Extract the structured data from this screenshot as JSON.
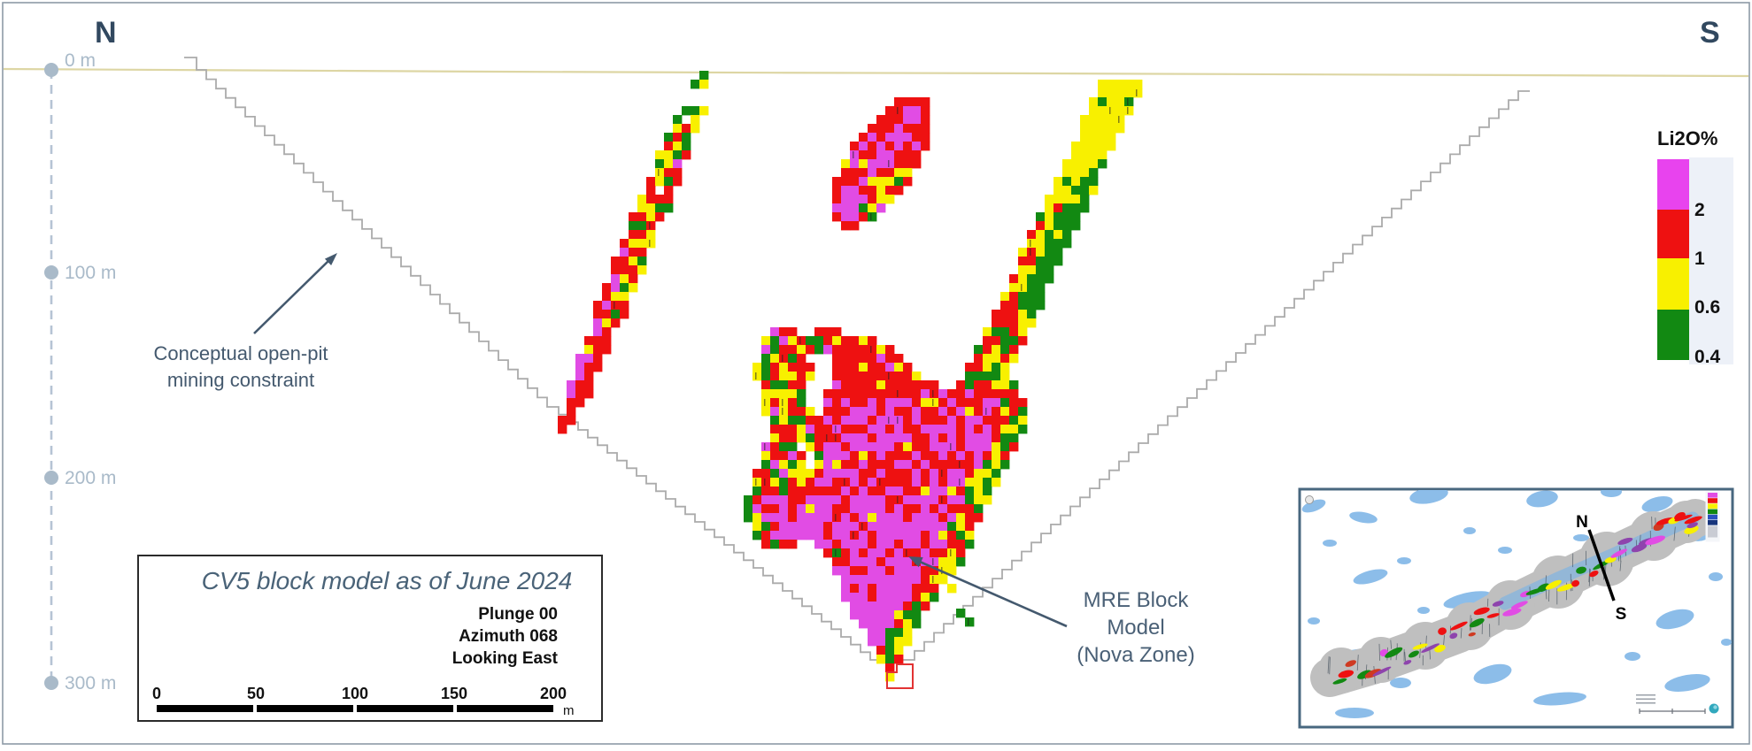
{
  "figure": {
    "north_label": "N",
    "south_label": "S",
    "depth_axis": {
      "markers": [
        "0 m",
        "100 m",
        "200 m",
        "300 m"
      ]
    },
    "annotations": {
      "pit_line1": "Conceptual open-pit",
      "pit_line2": "mining constraint",
      "mre_line1": "MRE Block",
      "mre_line2": "Model",
      "mre_line3": "(Nova Zone)"
    }
  },
  "legend": {
    "title": "Li2O%",
    "entries": [
      {
        "label": "2",
        "color": "#e843ee"
      },
      {
        "label": "1",
        "color": "#ee1111"
      },
      {
        "label": "0.6",
        "color": "#f8f000"
      },
      {
        "label": "0.4",
        "color": "#128912"
      }
    ]
  },
  "info_box": {
    "title": "CV5 block model as of June 2024",
    "details": [
      "Plunge 00",
      "Azimuth 068",
      "Looking East"
    ],
    "scale_bar": {
      "ticks": [
        "0",
        "50",
        "100",
        "150",
        "200"
      ],
      "unit": "m"
    }
  },
  "inset": {
    "north_label": "N",
    "south_label": "S"
  },
  "palette": {
    "block_magenta": "#e14ce4",
    "block_red": "#ee1111",
    "block_yellow": "#f8f000",
    "block_green": "#128912",
    "pit_line": "#ababab",
    "pit_bottom_marker": "#e23333",
    "surface_line": "#ddd6a4",
    "axis": "#b0bfcf",
    "annotation_arrow": "#44596e",
    "lake_blue": "#8cbde9",
    "corridor_gray": "#bfbfbf"
  }
}
